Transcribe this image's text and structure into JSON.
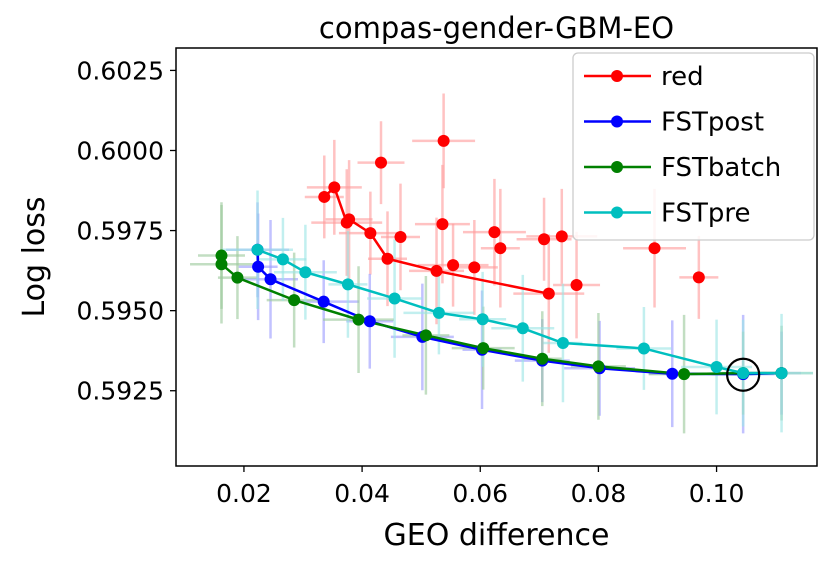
{
  "chart_data": {
    "type": "scatter",
    "title": "compas-gender-GBM-EO",
    "xlabel": "GEO difference",
    "ylabel": "Log loss",
    "xlim": [
      0.0085,
      0.117
    ],
    "ylim": [
      0.59015,
      0.6032
    ],
    "xticks": [
      0.02,
      0.04,
      0.06,
      0.08,
      0.1
    ],
    "xtick_labels": [
      "0.02",
      "0.04",
      "0.06",
      "0.08",
      "0.10"
    ],
    "yticks": [
      0.5925,
      0.595,
      0.5975,
      0.6,
      0.6025
    ],
    "ytick_labels": [
      "0.5925",
      "0.5950",
      "0.5975",
      "0.6000",
      "0.6025"
    ],
    "legend_position": "top-right",
    "highlight_point": {
      "x": 0.1045,
      "y": 0.593
    },
    "series": [
      {
        "name": "red",
        "color": "#ff0000",
        "band_color": "#ff9999",
        "line": [
          [
            0.0336,
            0.59855
          ],
          [
            0.0353,
            0.59885
          ],
          [
            0.0374,
            0.59775
          ],
          [
            0.0378,
            0.59785
          ],
          [
            0.0414,
            0.59742
          ],
          [
            0.0443,
            0.59662
          ],
          [
            0.0526,
            0.59624
          ],
          [
            0.0716,
            0.59553
          ]
        ],
        "scatter": [
          [
            0.0432,
            0.59962
          ],
          [
            0.0538,
            0.6003
          ],
          [
            0.0465,
            0.5973
          ],
          [
            0.0536,
            0.5977
          ],
          [
            0.0554,
            0.59642
          ],
          [
            0.059,
            0.59635
          ],
          [
            0.0624,
            0.59745
          ],
          [
            0.0634,
            0.59695
          ],
          [
            0.0708,
            0.59723
          ],
          [
            0.0738,
            0.59732
          ],
          [
            0.0763,
            0.5958
          ],
          [
            0.0895,
            0.59695
          ],
          [
            0.097,
            0.59604
          ]
        ]
      },
      {
        "name": "FSTpost",
        "color": "#0000ff",
        "band_color": "#9999ff",
        "line": [
          [
            0.0223,
            0.5969
          ],
          [
            0.0224,
            0.59637
          ],
          [
            0.0245,
            0.59598
          ],
          [
            0.0335,
            0.59528
          ],
          [
            0.0413,
            0.59467
          ],
          [
            0.0502,
            0.59418
          ],
          [
            0.0603,
            0.59378
          ],
          [
            0.0705,
            0.59344
          ],
          [
            0.0802,
            0.5932
          ],
          [
            0.0925,
            0.59303
          ],
          [
            0.1045,
            0.59302
          ],
          [
            0.111,
            0.59305
          ]
        ],
        "scatter": []
      },
      {
        "name": "FSTbatch",
        "color": "#008000",
        "band_color": "#99c899",
        "line": [
          [
            0.0162,
            0.59672
          ],
          [
            0.0162,
            0.59645
          ],
          [
            0.0189,
            0.59603
          ],
          [
            0.0285,
            0.59533
          ],
          [
            0.0394,
            0.59472
          ],
          [
            0.0508,
            0.59423
          ],
          [
            0.0605,
            0.59383
          ],
          [
            0.0705,
            0.5935
          ],
          [
            0.08,
            0.59326
          ],
          [
            0.0945,
            0.59302
          ],
          [
            0.1045,
            0.59305
          ],
          [
            0.111,
            0.59305
          ]
        ],
        "scatter": []
      },
      {
        "name": "FSTpre",
        "color": "#00bfbf",
        "band_color": "#99e5e5",
        "line": [
          [
            0.0223,
            0.5969
          ],
          [
            0.0266,
            0.5966
          ],
          [
            0.0304,
            0.5962
          ],
          [
            0.0376,
            0.59582
          ],
          [
            0.0455,
            0.59538
          ],
          [
            0.053,
            0.59493
          ],
          [
            0.0604,
            0.59473
          ],
          [
            0.0672,
            0.59445
          ],
          [
            0.074,
            0.59399
          ],
          [
            0.0877,
            0.59382
          ],
          [
            0.1,
            0.59324
          ],
          [
            0.1045,
            0.59305
          ],
          [
            0.111,
            0.59305
          ]
        ],
        "scatter": []
      }
    ]
  }
}
